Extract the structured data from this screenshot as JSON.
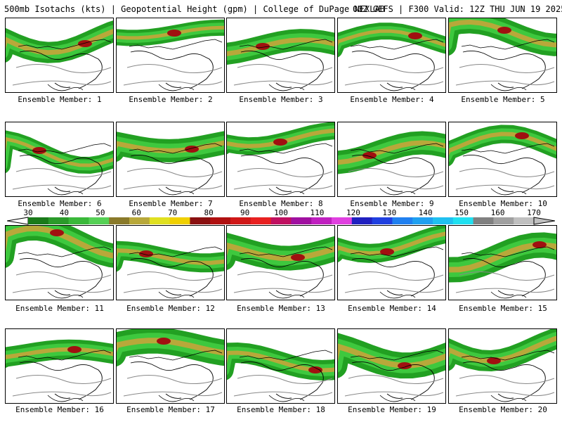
{
  "header": {
    "left_title": "500mb Isotachs (kts) | Geopotential Height (gpm) | College of DuPage NEXLAB",
    "right_title": "00Z GEFS | F300 Valid: 12Z THU JUN 19 2025"
  },
  "members": [
    "Ensemble Member: 1",
    "Ensemble Member: 2",
    "Ensemble Member: 3",
    "Ensemble Member: 4",
    "Ensemble Member: 5",
    "Ensemble Member: 6",
    "Ensemble Member: 7",
    "Ensemble Member: 8",
    "Ensemble Member: 9",
    "Ensemble Member: 10",
    "Ensemble Member: 11",
    "Ensemble Member: 12",
    "Ensemble Member: 13",
    "Ensemble Member: 14",
    "Ensemble Member: 15",
    "Ensemble Member: 16",
    "Ensemble Member: 17",
    "Ensemble Member: 18",
    "Ensemble Member: 19",
    "Ensemble Member: 20"
  ],
  "colorbar": {
    "labels": [
      "30",
      "40",
      "50",
      "60",
      "70",
      "80",
      "90",
      "100",
      "110",
      "120",
      "130",
      "140",
      "150",
      "160",
      "170"
    ],
    "colors": [
      "#1a7a1a",
      "#2a9a2a",
      "#3ab83a",
      "#55d055",
      "#8a7a2a",
      "#b8a83a",
      "#e0e020",
      "#f0d000",
      "#8a1010",
      "#b01010",
      "#d01818",
      "#e82020",
      "#c01060",
      "#a010a0",
      "#c020c0",
      "#e040e0",
      "#2020c0",
      "#2040e0",
      "#2080f0",
      "#20a0f0",
      "#20c0f0",
      "#20e0f0",
      "#808080",
      "#a0a0a0",
      "#c0c0c0"
    ]
  }
}
